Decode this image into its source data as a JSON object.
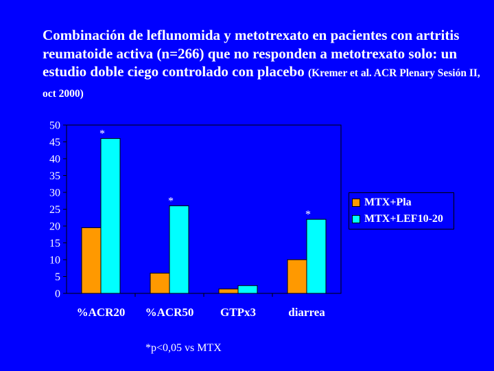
{
  "title": {
    "main": "Combinación de leflunomida y metotrexato en pacientes con artritis reumatoide activa (n=266) que no responden a metotrexato solo: un estudio doble ciego controlado con placebo",
    "reference": "(Kremer et al. ACR Plenary Sesión II, oct 2000)"
  },
  "footnote": "*p<0,05 vs MTX",
  "colors": {
    "background": "#0000ff",
    "series1": "#ff9900",
    "series2": "#00ffff",
    "text": "#ffffff"
  },
  "chart_data": {
    "type": "bar",
    "categories": [
      "%ACR20",
      "%ACR50",
      "GTPx3",
      "diarrea"
    ],
    "series": [
      {
        "name": "MTX+Pla",
        "values": [
          19.5,
          6,
          1.3,
          10
        ]
      },
      {
        "name": "MTX+LEF10-20",
        "values": [
          46,
          26,
          2.3,
          22
        ]
      }
    ],
    "annotations": [
      "*",
      "*",
      "",
      "*"
    ],
    "yticks": [
      0,
      5,
      10,
      15,
      20,
      25,
      30,
      35,
      40,
      45,
      50
    ],
    "ylim": [
      0,
      50
    ],
    "grid": false,
    "legend": "right",
    "title": "",
    "xlabel": "",
    "ylabel": ""
  }
}
